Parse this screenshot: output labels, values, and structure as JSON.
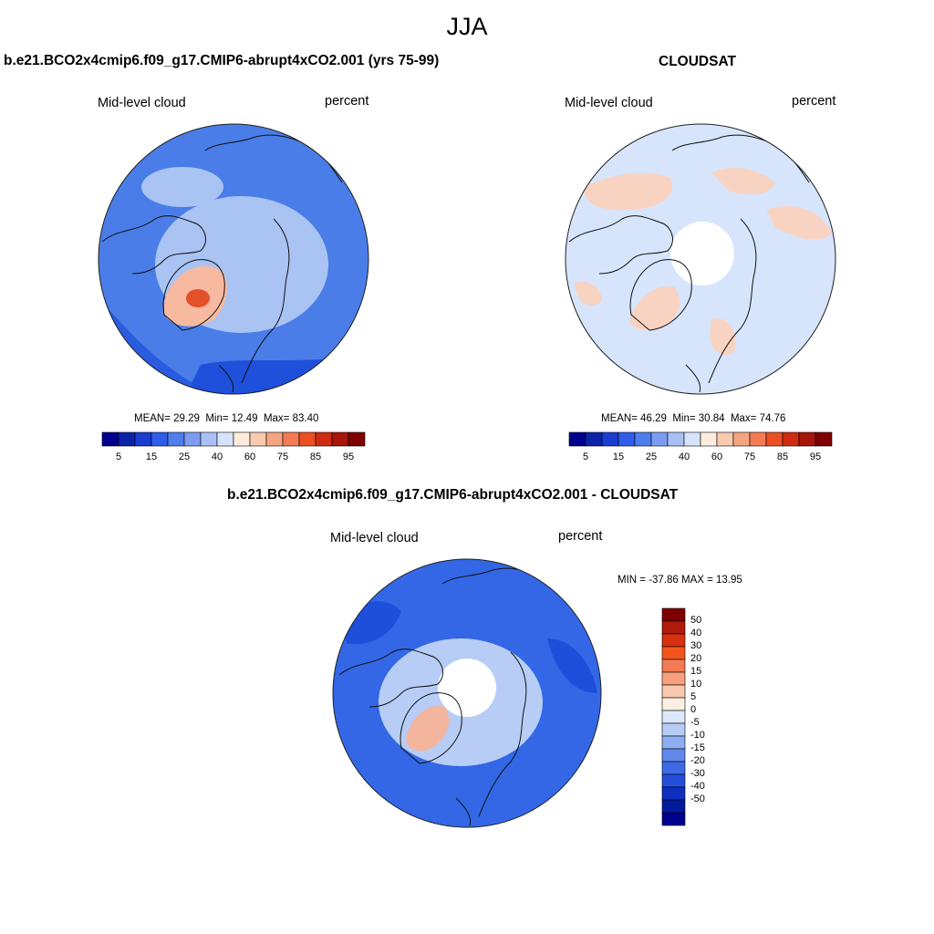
{
  "page_title": "JJA",
  "colors": {
    "ocean_map1": "#4a7de8",
    "pole_map1": "#a9c3f3",
    "greenland_map1": "#f7b9a0",
    "greenland_core_map1": "#e4502a",
    "ocean_map2": "#d6e5fb",
    "warm_map2": "#f9d3c1",
    "ocean_map3": "#3367e6",
    "pole_map3": "#b7cdf5",
    "greenland_map3": "#f3b59d",
    "coast": "#111111",
    "frame": "#222222"
  },
  "panels": [
    {
      "title": "b.e21.BCO2x4cmip6.f09_g17.CMIP6-abrupt4xCO2.001 (yrs 75-99)",
      "variable": "Mid-level cloud",
      "units": "percent",
      "stats": {
        "mean_label": "MEAN=",
        "mean": "29.29",
        "min_label": "Min=",
        "min": "12.49",
        "max_label": "Max=",
        "max": "83.40"
      }
    },
    {
      "title": "CLOUDSAT",
      "variable": "Mid-level cloud",
      "units": "percent",
      "stats": {
        "mean_label": "MEAN=",
        "mean": "46.29",
        "min_label": "Min=",
        "min": "30.84",
        "max_label": "Max=",
        "max": "74.76"
      }
    },
    {
      "title": "b.e21.BCO2x4cmip6.f09_g17.CMIP6-abrupt4xCO2.001 - CLOUDSAT",
      "variable": "Mid-level cloud",
      "units": "percent",
      "range_text": "MIN = -37.86 MAX =  13.95"
    }
  ],
  "colorbar_abs": {
    "colors": [
      "#00008f",
      "#0c22a8",
      "#1a3cd0",
      "#2f5ce8",
      "#4f7ded",
      "#7b9cf0",
      "#a9c0f5",
      "#d5e4fb",
      "#fdecdc",
      "#f9c9b0",
      "#f4a582",
      "#f47a53",
      "#ec4f23",
      "#cf2b10",
      "#a8150a",
      "#7f0000"
    ],
    "labels": [
      "5",
      "15",
      "25",
      "40",
      "60",
      "75",
      "85",
      "95"
    ]
  },
  "colorbar_diff": {
    "colors": [
      "#7f0000",
      "#b21a0a",
      "#d8300e",
      "#f2561d",
      "#f47a53",
      "#f6a07e",
      "#f9c9b0",
      "#fdeee2",
      "#dbe8fb",
      "#b8ccf5",
      "#8eacf0",
      "#6189eb",
      "#3e6ae6",
      "#234fdc",
      "#0e2fbf",
      "#001a9e",
      "#00008f"
    ],
    "labels": [
      "50",
      "40",
      "30",
      "20",
      "15",
      "10",
      "5",
      "0",
      "-5",
      "-10",
      "-15",
      "-20",
      "-30",
      "-40",
      "-50"
    ]
  }
}
